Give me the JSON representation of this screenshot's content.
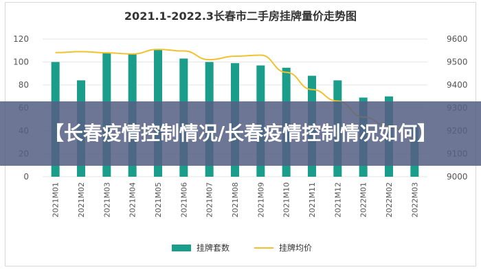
{
  "banner": {
    "text": "【长春疫情控制情况/长春疫情控制情况如何】"
  },
  "colors": {
    "bar": "#1a9e8b",
    "line": "#f2c12e",
    "axis_text": "#555555",
    "banner_bg": "#566084"
  },
  "chart_data": {
    "type": "bar",
    "title": "2021.1-2022.3长春市二手房挂牌量价走势图",
    "categories": [
      "2021M01",
      "2021M02",
      "2021M03",
      "2021M04",
      "2021M05",
      "2021M06",
      "2021M07",
      "2021M08",
      "2021M09",
      "2021M10",
      "2021M11",
      "2021M12",
      "2022M01",
      "2022M02",
      "2022M03"
    ],
    "series": [
      {
        "name": "挂牌套数",
        "type": "bar",
        "axis": "left",
        "values": [
          100,
          84,
          108,
          107,
          111,
          103,
          100,
          99,
          97,
          95,
          88,
          84,
          69,
          70,
          45
        ]
      },
      {
        "name": "挂牌均价",
        "type": "line",
        "axis": "right",
        "values": [
          9541,
          9545,
          9540,
          9535,
          9555,
          9548,
          9510,
          9525,
          9530,
          9455,
          9380,
          9330,
          9260,
          9220,
          9170
        ]
      }
    ],
    "y_left": {
      "min": 0,
      "max": 120,
      "ticks": [
        0,
        20,
        40,
        60,
        80,
        100,
        120
      ]
    },
    "y_right": {
      "min": 9000,
      "max": 9600,
      "ticks": [
        9000,
        9100,
        9200,
        9300,
        9400,
        9500,
        9600
      ]
    },
    "grid": true,
    "legend": "bottom"
  }
}
